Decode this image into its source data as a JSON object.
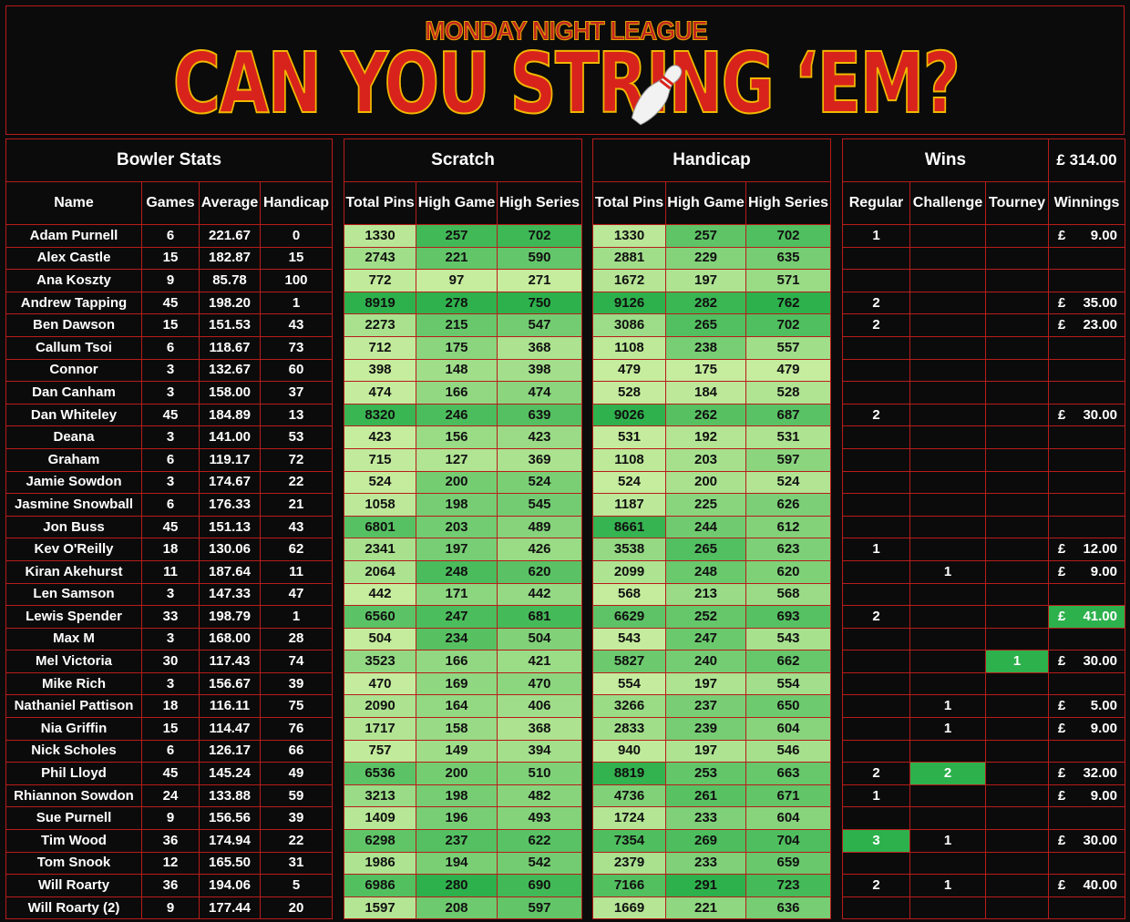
{
  "banner": {
    "league": "MONDAY NIGHT LEAGUE",
    "title": "CAN YOU STRING ‘EM?",
    "pin_icon": "bowling-pin-icon"
  },
  "sections": {
    "bowler": "Bowler Stats",
    "scratch": "Scratch",
    "handicap": "Handicap",
    "wins": "Wins",
    "total": "£ 314.00"
  },
  "headers": {
    "bowler": [
      "Name",
      "Games",
      "Average",
      "Handicap"
    ],
    "scratch": [
      "Total Pins",
      "High Game",
      "High Series"
    ],
    "handicap": [
      "Total Pins",
      "High Game",
      "High Series"
    ],
    "wins": [
      "Regular",
      "Challenge",
      "Tourney",
      "Winnings"
    ]
  },
  "colors": {
    "low": "#c6ec9e",
    "high": "#2db14c",
    "wins_highlight": "#2db14c",
    "border": "#b81c1c",
    "title": "#d8231c"
  },
  "rows": [
    {
      "name": "Adam Purnell",
      "games": "6",
      "average": "221.67",
      "handicap": "0",
      "s_total": "1330",
      "s_high": "257",
      "s_series": "702",
      "h_total": "1330",
      "h_high": "257",
      "h_series": "702",
      "regular": "1",
      "challenge": "",
      "tourney": "",
      "currency": "£",
      "winnings": "9.00"
    },
    {
      "name": "Alex Castle",
      "games": "15",
      "average": "182.87",
      "handicap": "15",
      "s_total": "2743",
      "s_high": "221",
      "s_series": "590",
      "h_total": "2881",
      "h_high": "229",
      "h_series": "635",
      "regular": "",
      "challenge": "",
      "tourney": "",
      "currency": "",
      "winnings": ""
    },
    {
      "name": "Ana Koszty",
      "games": "9",
      "average": "85.78",
      "handicap": "100",
      "s_total": "772",
      "s_high": "97",
      "s_series": "271",
      "h_total": "1672",
      "h_high": "197",
      "h_series": "571",
      "regular": "",
      "challenge": "",
      "tourney": "",
      "currency": "",
      "winnings": ""
    },
    {
      "name": "Andrew Tapping",
      "games": "45",
      "average": "198.20",
      "handicap": "1",
      "s_total": "8919",
      "s_high": "278",
      "s_series": "750",
      "h_total": "9126",
      "h_high": "282",
      "h_series": "762",
      "regular": "2",
      "challenge": "",
      "tourney": "",
      "currency": "£",
      "winnings": "35.00"
    },
    {
      "name": "Ben Dawson",
      "games": "15",
      "average": "151.53",
      "handicap": "43",
      "s_total": "2273",
      "s_high": "215",
      "s_series": "547",
      "h_total": "3086",
      "h_high": "265",
      "h_series": "702",
      "regular": "2",
      "challenge": "",
      "tourney": "",
      "currency": "£",
      "winnings": "23.00"
    },
    {
      "name": "Callum Tsoi",
      "games": "6",
      "average": "118.67",
      "handicap": "73",
      "s_total": "712",
      "s_high": "175",
      "s_series": "368",
      "h_total": "1108",
      "h_high": "238",
      "h_series": "557",
      "regular": "",
      "challenge": "",
      "tourney": "",
      "currency": "",
      "winnings": ""
    },
    {
      "name": "Connor",
      "games": "3",
      "average": "132.67",
      "handicap": "60",
      "s_total": "398",
      "s_high": "148",
      "s_series": "398",
      "h_total": "479",
      "h_high": "175",
      "h_series": "479",
      "regular": "",
      "challenge": "",
      "tourney": "",
      "currency": "",
      "winnings": ""
    },
    {
      "name": "Dan Canham",
      "games": "3",
      "average": "158.00",
      "handicap": "37",
      "s_total": "474",
      "s_high": "166",
      "s_series": "474",
      "h_total": "528",
      "h_high": "184",
      "h_series": "528",
      "regular": "",
      "challenge": "",
      "tourney": "",
      "currency": "",
      "winnings": ""
    },
    {
      "name": "Dan Whiteley",
      "games": "45",
      "average": "184.89",
      "handicap": "13",
      "s_total": "8320",
      "s_high": "246",
      "s_series": "639",
      "h_total": "9026",
      "h_high": "262",
      "h_series": "687",
      "regular": "2",
      "challenge": "",
      "tourney": "",
      "currency": "£",
      "winnings": "30.00"
    },
    {
      "name": "Deana",
      "games": "3",
      "average": "141.00",
      "handicap": "53",
      "s_total": "423",
      "s_high": "156",
      "s_series": "423",
      "h_total": "531",
      "h_high": "192",
      "h_series": "531",
      "regular": "",
      "challenge": "",
      "tourney": "",
      "currency": "",
      "winnings": ""
    },
    {
      "name": "Graham",
      "games": "6",
      "average": "119.17",
      "handicap": "72",
      "s_total": "715",
      "s_high": "127",
      "s_series": "369",
      "h_total": "1108",
      "h_high": "203",
      "h_series": "597",
      "regular": "",
      "challenge": "",
      "tourney": "",
      "currency": "",
      "winnings": ""
    },
    {
      "name": "Jamie Sowdon",
      "games": "3",
      "average": "174.67",
      "handicap": "22",
      "s_total": "524",
      "s_high": "200",
      "s_series": "524",
      "h_total": "524",
      "h_high": "200",
      "h_series": "524",
      "regular": "",
      "challenge": "",
      "tourney": "",
      "currency": "",
      "winnings": ""
    },
    {
      "name": "Jasmine Snowball",
      "games": "6",
      "average": "176.33",
      "handicap": "21",
      "s_total": "1058",
      "s_high": "198",
      "s_series": "545",
      "h_total": "1187",
      "h_high": "225",
      "h_series": "626",
      "regular": "",
      "challenge": "",
      "tourney": "",
      "currency": "",
      "winnings": ""
    },
    {
      "name": "Jon Buss",
      "games": "45",
      "average": "151.13",
      "handicap": "43",
      "s_total": "6801",
      "s_high": "203",
      "s_series": "489",
      "h_total": "8661",
      "h_high": "244",
      "h_series": "612",
      "regular": "",
      "challenge": "",
      "tourney": "",
      "currency": "",
      "winnings": ""
    },
    {
      "name": "Kev O'Reilly",
      "games": "18",
      "average": "130.06",
      "handicap": "62",
      "s_total": "2341",
      "s_high": "197",
      "s_series": "426",
      "h_total": "3538",
      "h_high": "265",
      "h_series": "623",
      "regular": "1",
      "challenge": "",
      "tourney": "",
      "currency": "£",
      "winnings": "12.00"
    },
    {
      "name": "Kiran Akehurst",
      "games": "11",
      "average": "187.64",
      "handicap": "11",
      "s_total": "2064",
      "s_high": "248",
      "s_series": "620",
      "h_total": "2099",
      "h_high": "248",
      "h_series": "620",
      "regular": "",
      "challenge": "1",
      "tourney": "",
      "currency": "£",
      "winnings": "9.00"
    },
    {
      "name": "Len Samson",
      "games": "3",
      "average": "147.33",
      "handicap": "47",
      "s_total": "442",
      "s_high": "171",
      "s_series": "442",
      "h_total": "568",
      "h_high": "213",
      "h_series": "568",
      "regular": "",
      "challenge": "",
      "tourney": "",
      "currency": "",
      "winnings": ""
    },
    {
      "name": "Lewis Spender",
      "games": "33",
      "average": "198.79",
      "handicap": "1",
      "s_total": "6560",
      "s_high": "247",
      "s_series": "681",
      "h_total": "6629",
      "h_high": "252",
      "h_series": "693",
      "regular": "2",
      "challenge": "",
      "tourney": "",
      "currency": "£",
      "winnings": "41.00",
      "hl_winnings": true
    },
    {
      "name": "Max M",
      "games": "3",
      "average": "168.00",
      "handicap": "28",
      "s_total": "504",
      "s_high": "234",
      "s_series": "504",
      "h_total": "543",
      "h_high": "247",
      "h_series": "543",
      "regular": "",
      "challenge": "",
      "tourney": "",
      "currency": "",
      "winnings": ""
    },
    {
      "name": "Mel Victoria",
      "games": "30",
      "average": "117.43",
      "handicap": "74",
      "s_total": "3523",
      "s_high": "166",
      "s_series": "421",
      "h_total": "5827",
      "h_high": "240",
      "h_series": "662",
      "regular": "",
      "challenge": "",
      "tourney": "1",
      "currency": "£",
      "winnings": "30.00",
      "hl_tourney": true
    },
    {
      "name": "Mike Rich",
      "games": "3",
      "average": "156.67",
      "handicap": "39",
      "s_total": "470",
      "s_high": "169",
      "s_series": "470",
      "h_total": "554",
      "h_high": "197",
      "h_series": "554",
      "regular": "",
      "challenge": "",
      "tourney": "",
      "currency": "",
      "winnings": ""
    },
    {
      "name": "Nathaniel Pattison",
      "games": "18",
      "average": "116.11",
      "handicap": "75",
      "s_total": "2090",
      "s_high": "164",
      "s_series": "406",
      "h_total": "3266",
      "h_high": "237",
      "h_series": "650",
      "regular": "",
      "challenge": "1",
      "tourney": "",
      "currency": "£",
      "winnings": "5.00"
    },
    {
      "name": "Nia Griffin",
      "games": "15",
      "average": "114.47",
      "handicap": "76",
      "s_total": "1717",
      "s_high": "158",
      "s_series": "368",
      "h_total": "2833",
      "h_high": "239",
      "h_series": "604",
      "regular": "",
      "challenge": "1",
      "tourney": "",
      "currency": "£",
      "winnings": "9.00"
    },
    {
      "name": "Nick Scholes",
      "games": "6",
      "average": "126.17",
      "handicap": "66",
      "s_total": "757",
      "s_high": "149",
      "s_series": "394",
      "h_total": "940",
      "h_high": "197",
      "h_series": "546",
      "regular": "",
      "challenge": "",
      "tourney": "",
      "currency": "",
      "winnings": ""
    },
    {
      "name": "Phil Lloyd",
      "games": "45",
      "average": "145.24",
      "handicap": "49",
      "s_total": "6536",
      "s_high": "200",
      "s_series": "510",
      "h_total": "8819",
      "h_high": "253",
      "h_series": "663",
      "regular": "2",
      "challenge": "2",
      "tourney": "",
      "currency": "£",
      "winnings": "32.00",
      "hl_challenge": true
    },
    {
      "name": "Rhiannon Sowdon",
      "games": "24",
      "average": "133.88",
      "handicap": "59",
      "s_total": "3213",
      "s_high": "198",
      "s_series": "482",
      "h_total": "4736",
      "h_high": "261",
      "h_series": "671",
      "regular": "1",
      "challenge": "",
      "tourney": "",
      "currency": "£",
      "winnings": "9.00"
    },
    {
      "name": "Sue Purnell",
      "games": "9",
      "average": "156.56",
      "handicap": "39",
      "s_total": "1409",
      "s_high": "196",
      "s_series": "493",
      "h_total": "1724",
      "h_high": "233",
      "h_series": "604",
      "regular": "",
      "challenge": "",
      "tourney": "",
      "currency": "",
      "winnings": ""
    },
    {
      "name": "Tim Wood",
      "games": "36",
      "average": "174.94",
      "handicap": "22",
      "s_total": "6298",
      "s_high": "237",
      "s_series": "622",
      "h_total": "7354",
      "h_high": "269",
      "h_series": "704",
      "regular": "3",
      "challenge": "1",
      "tourney": "",
      "currency": "£",
      "winnings": "30.00",
      "hl_regular": true
    },
    {
      "name": "Tom Snook",
      "games": "12",
      "average": "165.50",
      "handicap": "31",
      "s_total": "1986",
      "s_high": "194",
      "s_series": "542",
      "h_total": "2379",
      "h_high": "233",
      "h_series": "659",
      "regular": "",
      "challenge": "",
      "tourney": "",
      "currency": "",
      "winnings": ""
    },
    {
      "name": "Will Roarty",
      "games": "36",
      "average": "194.06",
      "handicap": "5",
      "s_total": "6986",
      "s_high": "280",
      "s_series": "690",
      "h_total": "7166",
      "h_high": "291",
      "h_series": "723",
      "regular": "2",
      "challenge": "1",
      "tourney": "",
      "currency": "£",
      "winnings": "40.00"
    },
    {
      "name": "Will Roarty (2)",
      "games": "9",
      "average": "177.44",
      "handicap": "20",
      "s_total": "1597",
      "s_high": "208",
      "s_series": "597",
      "h_total": "1669",
      "h_high": "221",
      "h_series": "636",
      "regular": "",
      "challenge": "",
      "tourney": "",
      "currency": "",
      "winnings": ""
    }
  ]
}
